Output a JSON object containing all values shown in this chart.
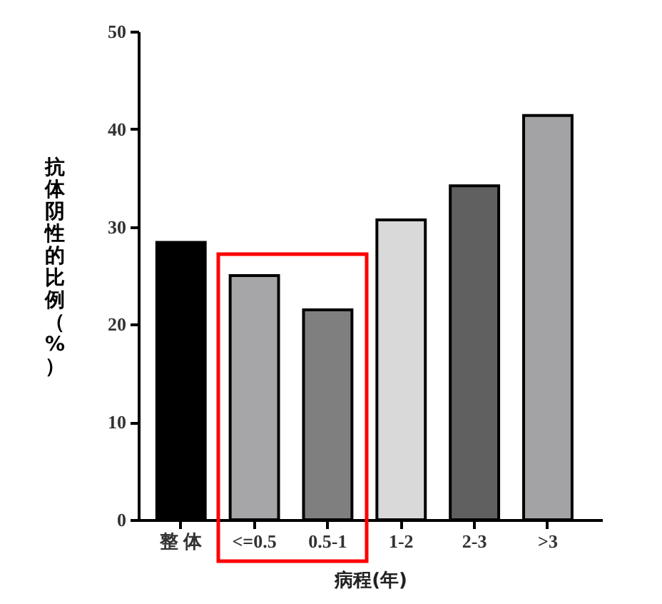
{
  "chart_data": {
    "type": "bar",
    "xlabel": "病程(年)",
    "ylabel": "抗体阴性的比例（%）",
    "categories": [
      "整 体",
      "<=0.5",
      "0.5-1",
      "1-2",
      "2-3",
      ">3"
    ],
    "values": [
      28.4,
      25,
      21.5,
      30.7,
      34.2,
      41.4
    ],
    "colors": [
      "#000000",
      "#a6a6a8",
      "#7f7f7f",
      "#d9d9d9",
      "#606060",
      "#a3a3a6"
    ],
    "ylim": [
      0,
      50
    ],
    "yticks": [
      0,
      10,
      20,
      30,
      40,
      50
    ],
    "grid": false
  }
}
